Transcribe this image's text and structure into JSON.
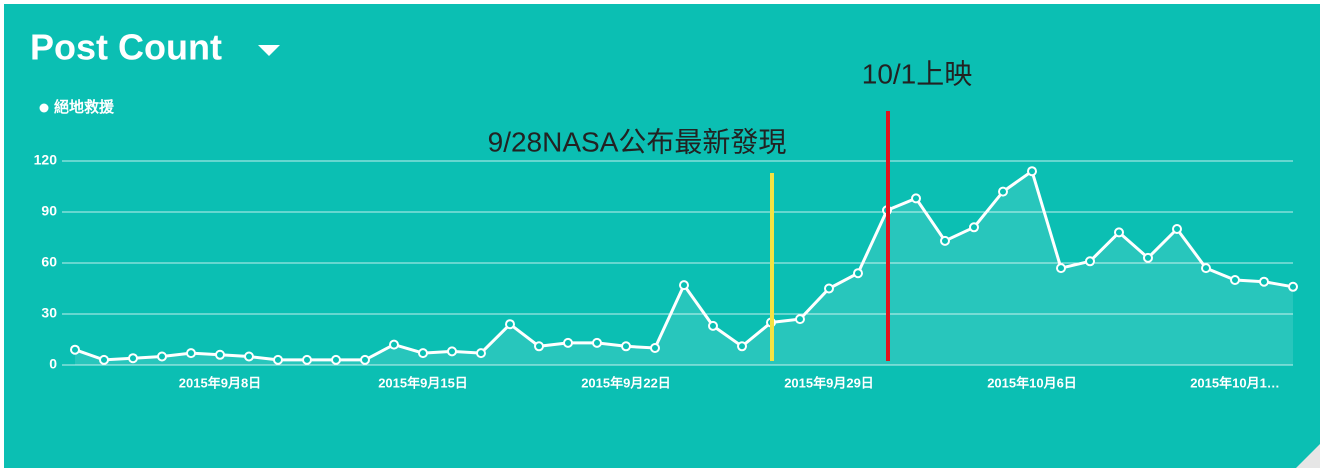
{
  "chart_data": {
    "type": "line",
    "title": "Post Count",
    "categories": [
      null,
      null,
      null,
      null,
      null,
      "2015年9月8日",
      null,
      null,
      null,
      null,
      null,
      null,
      "2015年9月15日",
      null,
      null,
      null,
      null,
      null,
      null,
      "2015年9月22日",
      null,
      null,
      null,
      null,
      null,
      null,
      "2015年9月29日",
      null,
      null,
      null,
      null,
      null,
      null,
      "2015年10月6日",
      null,
      null,
      null,
      null,
      null,
      null,
      "2015年10月1…",
      null,
      null
    ],
    "series": [
      {
        "name": "絕地救援",
        "color": "#ffffff",
        "values": [
          9,
          3,
          4,
          5,
          7,
          6,
          5,
          3,
          3,
          3,
          3,
          12,
          7,
          8,
          7,
          24,
          11,
          13,
          13,
          11,
          10,
          47,
          23,
          11,
          25,
          27,
          45,
          54,
          91,
          98,
          73,
          81,
          102,
          114,
          57,
          61,
          78,
          63,
          80,
          57,
          50,
          49,
          46
        ]
      }
    ],
    "ylim": [
      0,
      120
    ],
    "yticks": [
      0,
      30,
      60,
      90,
      120
    ],
    "grid": true,
    "annotations": [
      {
        "text": "9/28NASA公布最新發現",
        "color": "#f5e342",
        "index": 24
      },
      {
        "text": "10/1上映",
        "color": "#e0141e",
        "index": 28
      }
    ]
  }
}
